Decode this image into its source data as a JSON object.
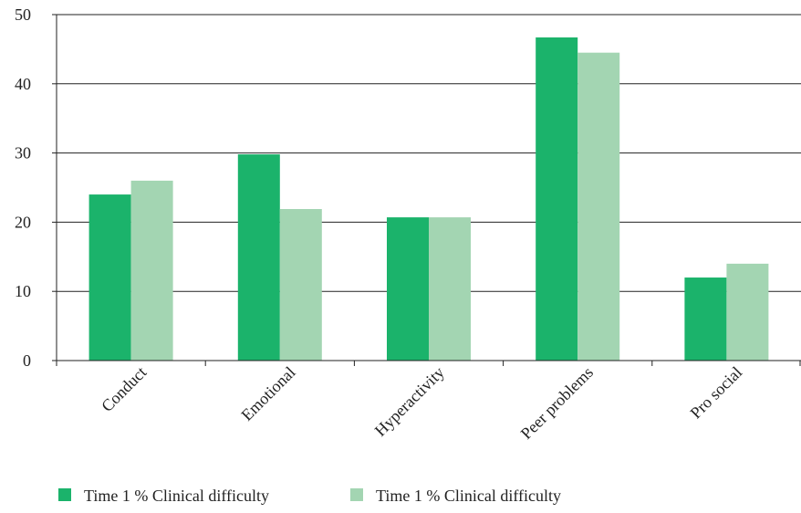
{
  "chart_data": {
    "type": "bar",
    "title": "",
    "xlabel": "",
    "ylabel": "",
    "ylim": [
      0,
      50
    ],
    "yticks": [
      0,
      10,
      20,
      30,
      40,
      50
    ],
    "grid": true,
    "legend_position": "bottom-left",
    "categories": [
      "Conduct",
      "Emotional",
      "Hyperactivity",
      "Peer problems",
      "Pro social"
    ],
    "series": [
      {
        "name": "Time 1 % Clinical difficulty",
        "color": "#1bb36b",
        "values": [
          24,
          29.8,
          20.7,
          46.7,
          12
        ]
      },
      {
        "name": "Time 1 % Clinical difficulty",
        "color": "#a3d5b2",
        "values": [
          26,
          21.9,
          20.7,
          44.5,
          14
        ]
      }
    ]
  }
}
